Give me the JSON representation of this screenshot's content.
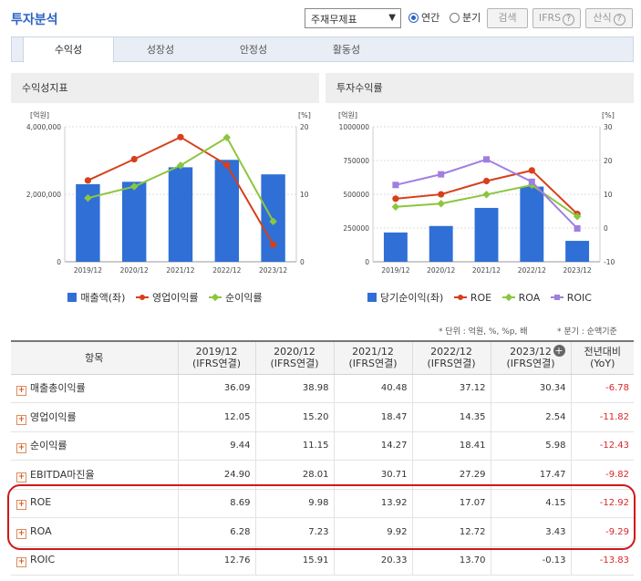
{
  "header": {
    "title": "투자분석",
    "select_value": "주재무제표",
    "radio_annual": "연간",
    "radio_quarter": "분기",
    "search_button": "검색",
    "ifrs_button": "IFRS",
    "formula_button": "산식"
  },
  "tabs": [
    {
      "label": "수익성",
      "active": true
    },
    {
      "label": "성장성",
      "active": false
    },
    {
      "label": "안정성",
      "active": false
    },
    {
      "label": "활동성",
      "active": false
    }
  ],
  "colors": {
    "blue": "#2f6fd6",
    "red": "#d6401b",
    "green": "#8cc63f",
    "purple": "#a07ee0"
  },
  "chart_data": [
    {
      "type": "bar",
      "title": "수익성지표",
      "left_unit": "[억원]",
      "right_unit": "[%]",
      "categories": [
        "2019/12",
        "2020/12",
        "2021/12",
        "2022/12",
        "2023/12"
      ],
      "left_ticks": [
        "4,000,000",
        "2,000,000",
        "0"
      ],
      "right_ticks": [
        "20",
        "10",
        "0"
      ],
      "left_ylim": [
        0,
        4000000
      ],
      "right_ylim": [
        0,
        20
      ],
      "series": [
        {
          "name": "매출액(좌)",
          "kind": "bar",
          "axis": "left",
          "values": [
            2300000,
            2370000,
            2800000,
            3020000,
            2590000
          ]
        },
        {
          "name": "영업이익률",
          "kind": "line",
          "axis": "right",
          "values": [
            12.05,
            15.2,
            18.47,
            14.35,
            2.54
          ]
        },
        {
          "name": "순이익률",
          "kind": "line",
          "axis": "right",
          "values": [
            9.44,
            11.15,
            14.27,
            18.41,
            5.98
          ]
        }
      ]
    },
    {
      "type": "bar",
      "title": "투자수익률",
      "left_unit": "[억원]",
      "right_unit": "[%]",
      "categories": [
        "2019/12",
        "2020/12",
        "2021/12",
        "2022/12",
        "2023/12"
      ],
      "left_ticks": [
        "1000000",
        "750000",
        "500000",
        "250000",
        "0"
      ],
      "right_ticks": [
        "30",
        "20",
        "10",
        "0",
        "-10"
      ],
      "left_ylim": [
        0,
        1000000
      ],
      "right_ylim": [
        -10,
        30
      ],
      "series": [
        {
          "name": "당기순이익(좌)",
          "kind": "bar",
          "axis": "left",
          "values": [
            217000,
            265000,
            399000,
            557000,
            155000
          ]
        },
        {
          "name": "ROE",
          "kind": "line",
          "axis": "right",
          "values": [
            8.69,
            9.98,
            13.92,
            17.07,
            4.15
          ]
        },
        {
          "name": "ROA",
          "kind": "line",
          "axis": "right",
          "values": [
            6.28,
            7.23,
            9.92,
            12.72,
            3.43
          ]
        },
        {
          "name": "ROIC",
          "kind": "line",
          "axis": "right",
          "values": [
            12.76,
            15.91,
            20.33,
            13.7,
            -0.13
          ]
        }
      ]
    }
  ],
  "notes": {
    "unit": "* 단위 : 억원, %, %p, 배",
    "quarter": "* 분기 : 순액기준"
  },
  "table": {
    "headers": [
      {
        "line1": "항목",
        "line2": ""
      },
      {
        "line1": "2019/12",
        "line2": "(IFRS연결)"
      },
      {
        "line1": "2020/12",
        "line2": "(IFRS연결)"
      },
      {
        "line1": "2021/12",
        "line2": "(IFRS연결)"
      },
      {
        "line1": "2022/12",
        "line2": "(IFRS연결)"
      },
      {
        "line1": "2023/12",
        "line2": "(IFRS연결)"
      },
      {
        "line1": "전년대비",
        "line2": "(YoY)"
      }
    ],
    "rows": [
      {
        "label": "매출총이익률",
        "values": [
          "36.09",
          "38.98",
          "40.48",
          "37.12",
          "30.34"
        ],
        "yoy": "-6.78"
      },
      {
        "label": "영업이익률",
        "values": [
          "12.05",
          "15.20",
          "18.47",
          "14.35",
          "2.54"
        ],
        "yoy": "-11.82"
      },
      {
        "label": "순이익률",
        "values": [
          "9.44",
          "11.15",
          "14.27",
          "18.41",
          "5.98"
        ],
        "yoy": "-12.43"
      },
      {
        "label": "EBITDA마진율",
        "values": [
          "24.90",
          "28.01",
          "30.71",
          "27.29",
          "17.47"
        ],
        "yoy": "-9.82"
      },
      {
        "label": "ROE",
        "values": [
          "8.69",
          "9.98",
          "13.92",
          "17.07",
          "4.15"
        ],
        "yoy": "-12.92"
      },
      {
        "label": "ROA",
        "values": [
          "6.28",
          "7.23",
          "9.92",
          "12.72",
          "3.43"
        ],
        "yoy": "-9.29"
      },
      {
        "label": "ROIC",
        "values": [
          "12.76",
          "15.91",
          "20.33",
          "13.70",
          "-0.13"
        ],
        "yoy": "-13.83"
      }
    ]
  }
}
